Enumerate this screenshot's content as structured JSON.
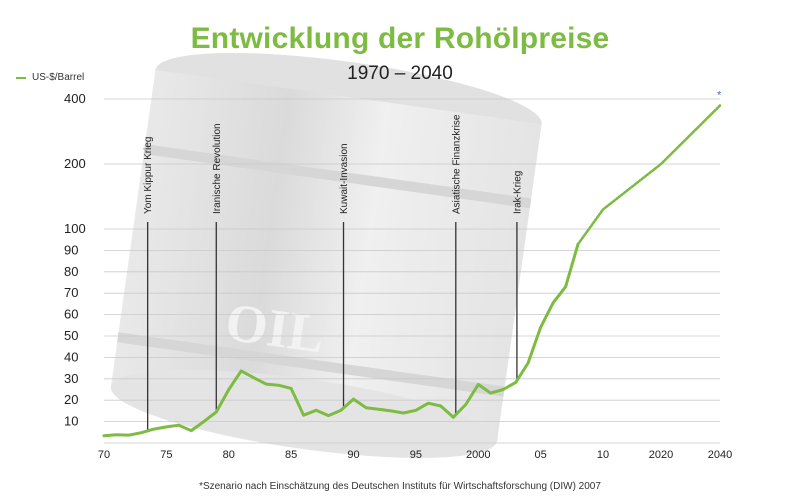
{
  "chart_data": {
    "type": "line",
    "title": "Entwicklung der Rohölpreise",
    "subtitle": "1970 – 2040",
    "legend": "US-$/Barrel",
    "legend_position": "top-left",
    "grid": true,
    "line_color": "#7dbb42",
    "x_ticks": [
      "70",
      "75",
      "80",
      "85",
      "90",
      "95",
      "2000",
      "05",
      "10",
      "2020",
      "2040"
    ],
    "y_ticks": [
      "10",
      "20",
      "30",
      "40",
      "50",
      "60",
      "70",
      "80",
      "90",
      "100",
      "200",
      "400"
    ],
    "series_actual": {
      "name": "US-$/Barrel",
      "x": [
        1970,
        1971,
        1972,
        1973,
        1974,
        1975,
        1976,
        1977,
        1978,
        1979,
        1980,
        1981,
        1982,
        1983,
        1984,
        1985,
        1986,
        1987,
        1988,
        1989,
        1990,
        1991,
        1992,
        1993,
        1994,
        1995,
        1996,
        1997,
        1998,
        1999,
        2000,
        2001,
        2002,
        2003,
        2004,
        2005,
        2006,
        2007,
        2008
      ],
      "y": [
        3.4,
        3.9,
        3.7,
        4.8,
        6.5,
        7.5,
        8.3,
        5.8,
        10,
        14.5,
        25,
        33.7,
        30.5,
        27.5,
        27,
        25.5,
        13,
        15.3,
        12.8,
        15.3,
        20.5,
        16.5,
        15.8,
        15,
        14,
        15.3,
        18.6,
        17.3,
        12,
        18,
        27.4,
        23.3,
        25,
        28.3,
        37.4,
        54,
        65.5,
        73,
        92.9
      ]
    },
    "series_projection": {
      "x": [
        2008,
        2010,
        2020,
        2040
      ],
      "y": [
        92.9,
        130,
        200,
        380
      ]
    },
    "events": [
      {
        "year": 1973.5,
        "label": "Yom Kippur Krieg"
      },
      {
        "year": 1979,
        "label": "Iranische Revolution"
      },
      {
        "year": 1989.2,
        "label": "Kuwait-Invasion"
      },
      {
        "year": 1998.2,
        "label": "Asiatische Finanzkrise"
      },
      {
        "year": 2003.1,
        "label": "Irak-Krieg"
      }
    ],
    "marker_label": "*",
    "footnote": "*Szenario nach Einschätzung des Deutschen Instituts für Wirtschaftsforschung (DIW) 2007"
  },
  "colors": {
    "accent": "#7dbb42",
    "grid": "#c9c9c9",
    "event_line": "#333333",
    "asterisk": "#3a6fb0"
  }
}
